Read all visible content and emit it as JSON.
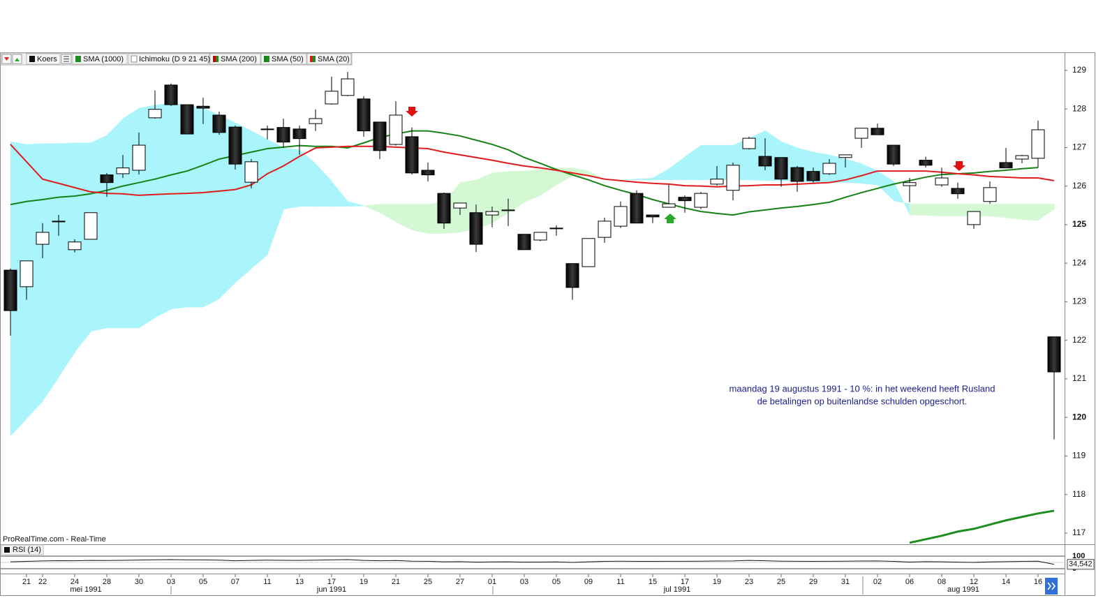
{
  "chart_data": {
    "type": "candlestick",
    "watermark": "ProRealTime.com - Real-Time",
    "annotation": [
      "maandag 19 augustus 1991 - 10 %: in het weekend heeft Rusland",
      "de betalingen op buitenlandse schulden opgeschort."
    ],
    "months": [
      "mei 1991",
      "jun 1991",
      "jul 1991",
      "aug 1991"
    ],
    "categories": [
      null,
      "21",
      "22",
      null,
      "24",
      null,
      "28",
      null,
      "30",
      null,
      "03",
      null,
      "05",
      null,
      "07",
      null,
      "11",
      null,
      "13",
      null,
      "17",
      null,
      "19",
      null,
      "21",
      null,
      "25",
      null,
      "27",
      null,
      "01",
      null,
      "03",
      null,
      "05",
      null,
      "09",
      null,
      "11",
      null,
      "15",
      null,
      "17",
      null,
      "19",
      null,
      "23",
      null,
      "25",
      null,
      "29",
      null,
      "31",
      null,
      "02",
      null,
      "06",
      null,
      "08",
      null,
      "12",
      null,
      "14",
      null,
      "16",
      null
    ],
    "ylim": [
      116.71,
      129.45
    ],
    "yticks": [
      117,
      118,
      119,
      120,
      121,
      122,
      123,
      124,
      125,
      126,
      127,
      128,
      129
    ],
    "candles": {
      "name": "Koers",
      "up_color": "#ffffff",
      "down_color": "#161616",
      "open": [
        123.82,
        123.39,
        124.49,
        125.09,
        124.35,
        124.62,
        126.29,
        126.32,
        126.41,
        127.77,
        128.62,
        128.11,
        128.07,
        127.84,
        127.53,
        126.1,
        127.48,
        127.52,
        127.48,
        127.62,
        128.13,
        128.35,
        128.26,
        127.66,
        127.08,
        127.28,
        126.41,
        125.81,
        125.43,
        125.31,
        125.25,
        125.38,
        124.75,
        124.6,
        124.91,
        123.99,
        123.91,
        124.67,
        124.96,
        125.81,
        125.25,
        125.45,
        125.71,
        125.45,
        126.05,
        125.89,
        126.97,
        126.77,
        126.74,
        126.48,
        126.38,
        126.32,
        126.74,
        127.24,
        127.5,
        127.06,
        126.01,
        126.67,
        126.03,
        125.94,
        125.0,
        125.6,
        126.61,
        126.7,
        126.72,
        122.09
      ],
      "high": [
        123.86,
        124.06,
        125.04,
        125.25,
        124.62,
        125.31,
        126.34,
        126.81,
        127.39,
        128.48,
        128.66,
        128.11,
        128.29,
        127.93,
        127.57,
        126.7,
        127.57,
        127.75,
        127.57,
        127.99,
        128.84,
        128.96,
        128.33,
        127.66,
        128.2,
        127.52,
        126.61,
        125.83,
        125.56,
        125.52,
        125.47,
        125.67,
        124.75,
        124.8,
        124.98,
        123.99,
        124.64,
        125.18,
        125.6,
        125.89,
        125.25,
        126.03,
        125.76,
        125.85,
        126.52,
        126.61,
        127.28,
        127.24,
        126.74,
        126.52,
        126.48,
        126.7,
        126.81,
        127.5,
        127.62,
        127.06,
        126.21,
        126.76,
        126.48,
        126.09,
        125.34,
        126.12,
        126.99,
        126.81,
        127.7,
        122.09
      ],
      "low": [
        122.12,
        123.05,
        124.13,
        124.71,
        124.28,
        124.62,
        125.72,
        126.21,
        126.3,
        127.75,
        128.08,
        127.35,
        127.61,
        127.33,
        126.43,
        125.94,
        127.21,
        126.99,
        126.81,
        127.43,
        128.11,
        128.33,
        127.28,
        126.7,
        127.05,
        126.3,
        126.12,
        124.89,
        125.25,
        124.29,
        124.93,
        124.96,
        124.35,
        124.57,
        124.71,
        123.05,
        123.91,
        124.53,
        124.91,
        125.04,
        125.04,
        125.45,
        125.31,
        125.4,
        126.01,
        125.63,
        126.95,
        126.41,
        125.98,
        125.85,
        126.09,
        126.29,
        126.48,
        126.99,
        127.33,
        126.52,
        125.58,
        126.48,
        125.98,
        125.67,
        124.89,
        125.54,
        126.47,
        126.59,
        126.48,
        119.43
      ],
      "close": [
        122.77,
        124.06,
        124.8,
        125.09,
        124.55,
        125.31,
        126.09,
        126.47,
        127.06,
        127.99,
        128.11,
        127.35,
        128.02,
        127.39,
        126.57,
        126.63,
        127.48,
        127.14,
        127.23,
        127.75,
        128.46,
        128.78,
        127.43,
        126.92,
        127.84,
        126.34,
        126.29,
        125.04,
        125.56,
        124.49,
        125.34,
        125.38,
        124.35,
        124.8,
        124.91,
        123.37,
        124.64,
        125.09,
        125.47,
        125.04,
        125.2,
        125.54,
        125.62,
        125.81,
        126.18,
        126.54,
        127.24,
        126.52,
        126.18,
        126.12,
        126.14,
        126.59,
        126.81,
        127.5,
        127.33,
        126.57,
        126.09,
        126.54,
        126.21,
        125.8,
        125.34,
        125.96,
        126.47,
        126.79,
        127.46,
        121.18
      ]
    },
    "ichimoku": {
      "name": "Ichimoku (D 9 21 45)",
      "color_a_above": "#a9f5fb",
      "color_b_above": "#d4f8d4",
      "span_a": [
        127.15,
        127.08,
        127.1,
        127.1,
        127.12,
        127.12,
        127.32,
        127.75,
        128.02,
        128.1,
        128.15,
        128.1,
        128.02,
        127.84,
        127.64,
        127.43,
        127.21,
        126.99,
        126.94,
        126.58,
        126.12,
        125.6,
        125.49,
        125.31,
        125.07,
        124.86,
        124.77,
        124.77,
        124.8,
        124.89,
        125.04,
        125.31,
        125.58,
        125.76,
        126.03,
        126.27,
        126.27,
        126.16,
        126.16,
        126.18,
        126.21,
        126.45,
        126.76,
        127.06,
        127.06,
        127.06,
        127.24,
        127.44,
        127.15,
        126.99,
        126.88,
        126.81,
        126.7,
        126.58,
        126.39,
        126.12,
        125.25,
        125.24,
        125.22,
        125.22,
        125.22,
        125.22,
        125.18,
        125.13,
        125.11,
        125.4
      ],
      "span_b": [
        119.52,
        119.97,
        120.42,
        121.05,
        121.69,
        122.23,
        122.32,
        122.32,
        122.32,
        122.59,
        122.81,
        122.86,
        122.86,
        123.08,
        123.5,
        123.86,
        124.22,
        125.4,
        125.47,
        125.47,
        125.47,
        125.47,
        125.49,
        125.53,
        125.53,
        125.53,
        125.53,
        125.58,
        126.09,
        126.16,
        126.34,
        126.38,
        126.39,
        126.43,
        126.47,
        126.47,
        126.39,
        126.16,
        126.16,
        126.16,
        126.16,
        126.16,
        126.16,
        126.16,
        126.16,
        126.16,
        126.16,
        126.14,
        126.14,
        126.12,
        126.1,
        126.09,
        126.09,
        126.07,
        126.03,
        125.62,
        125.54,
        125.54,
        125.54,
        125.54,
        125.54,
        125.54,
        125.54,
        125.54,
        125.54,
        125.54
      ]
    },
    "series": [
      {
        "name": "SMA (1000)",
        "color": "#1e8c1e",
        "values": [
          null,
          null,
          null,
          null,
          null,
          null,
          null,
          null,
          null,
          null,
          null,
          null,
          null,
          null,
          null,
          null,
          null,
          null,
          null,
          null,
          null,
          null,
          null,
          null,
          null,
          null,
          null,
          null,
          null,
          null,
          null,
          null,
          null,
          null,
          null,
          null,
          null,
          null,
          null,
          null,
          null,
          null,
          null,
          null,
          null,
          null,
          null,
          null,
          null,
          null,
          null,
          null,
          null,
          null,
          null,
          null,
          116.75,
          116.84,
          116.93,
          117.04,
          117.11,
          117.22,
          117.33,
          117.42,
          117.51,
          117.58
        ]
      },
      {
        "name": "SMA (200)",
        "color": "#cc0000",
        "values": [
          null,
          null,
          null,
          null,
          null,
          null,
          null,
          null,
          null,
          null,
          null,
          null,
          null,
          null,
          null,
          null,
          null,
          null,
          null,
          null,
          null,
          null,
          null,
          null,
          null,
          null,
          null,
          null,
          null,
          null,
          null,
          null,
          null,
          null,
          null,
          null,
          null,
          null,
          null,
          null,
          null,
          null,
          null,
          null,
          null,
          null,
          null,
          null,
          null,
          null,
          null,
          null,
          null,
          null,
          null,
          null,
          null,
          null,
          null,
          null,
          null,
          null,
          null,
          null,
          null,
          null
        ]
      },
      {
        "name": "SMA (50)",
        "color": "#158215",
        "values": [
          125.52,
          125.6,
          125.65,
          125.71,
          125.74,
          125.8,
          125.89,
          126.0,
          126.09,
          126.18,
          126.29,
          126.39,
          126.54,
          126.7,
          126.79,
          126.88,
          126.97,
          127.01,
          127.05,
          127.03,
          127.03,
          126.99,
          127.12,
          127.26,
          127.35,
          127.43,
          127.43,
          127.37,
          127.3,
          127.19,
          127.08,
          126.94,
          126.74,
          126.59,
          126.43,
          126.29,
          126.16,
          126.01,
          125.89,
          125.78,
          125.65,
          125.54,
          125.43,
          125.34,
          125.29,
          125.25,
          125.33,
          125.38,
          125.43,
          125.47,
          125.52,
          125.58,
          125.71,
          125.83,
          125.94,
          126.05,
          126.14,
          126.23,
          126.3,
          126.32,
          126.34,
          126.38,
          126.41,
          126.45,
          126.48,
          null
        ]
      },
      {
        "name": "SMA (20)",
        "color": "#e01b1b",
        "values": [
          127.08,
          126.63,
          126.18,
          126.07,
          125.96,
          125.85,
          125.81,
          125.8,
          125.76,
          125.78,
          125.8,
          125.81,
          125.83,
          125.87,
          125.91,
          126.03,
          126.32,
          126.52,
          126.77,
          126.99,
          127.01,
          127.03,
          127.03,
          127.03,
          127.01,
          126.99,
          126.97,
          126.88,
          126.81,
          126.74,
          126.67,
          126.59,
          126.52,
          126.47,
          126.41,
          126.34,
          126.27,
          126.18,
          126.14,
          126.1,
          126.07,
          126.05,
          126.01,
          126.0,
          125.98,
          126.0,
          126.01,
          126.03,
          126.03,
          126.05,
          126.07,
          126.09,
          126.16,
          126.27,
          126.39,
          126.39,
          126.39,
          126.39,
          126.36,
          126.32,
          126.29,
          126.25,
          126.23,
          126.21,
          126.21,
          126.14
        ]
      }
    ],
    "rsi": {
      "name": "RSI (14)",
      "color": "#111111",
      "ylim": [
        0,
        100
      ],
      "yticks": [
        100,
        50,
        0
      ],
      "values": [
        55,
        58,
        62,
        64,
        63,
        66,
        65,
        67,
        69,
        71,
        72,
        70,
        70,
        68,
        63,
        66,
        68,
        67,
        66,
        68,
        70,
        72,
        66,
        63,
        65,
        60,
        59,
        55,
        56,
        52,
        54,
        55,
        52,
        53,
        54,
        50,
        55,
        58,
        60,
        58,
        58,
        59,
        59,
        60,
        61,
        62,
        66,
        63,
        60,
        59,
        58,
        59,
        60,
        61,
        62,
        58,
        53,
        56,
        55,
        52,
        50,
        54,
        56,
        58,
        60,
        34.542
      ],
      "last_label": "34,542"
    }
  }
}
